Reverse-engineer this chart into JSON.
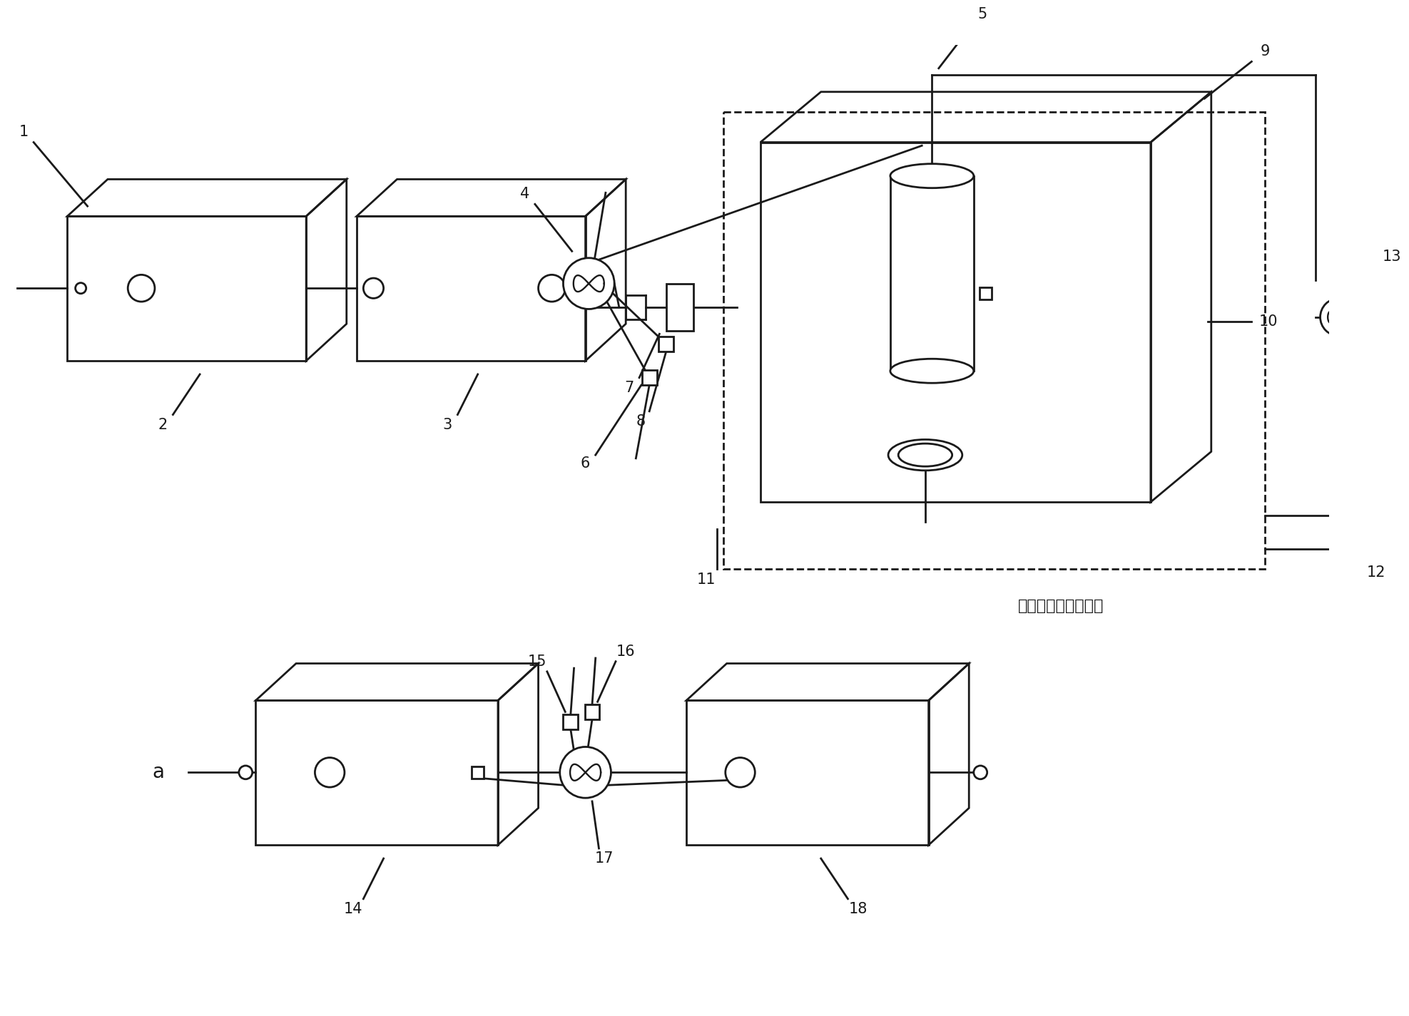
{
  "bg_color": "#ffffff",
  "lc": "#1a1a1a",
  "lw": 2.0,
  "fs": 15,
  "chinese_label": "二氧化碳冷凝液化筱"
}
